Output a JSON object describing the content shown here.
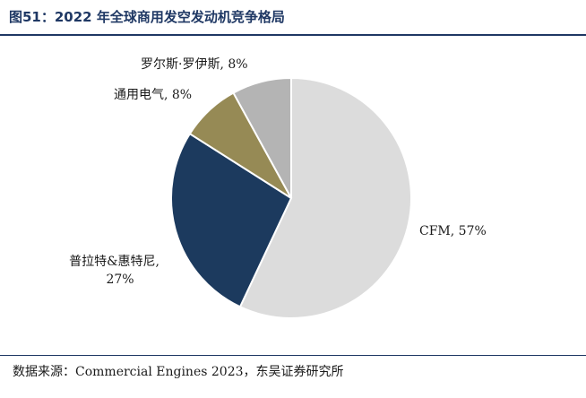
{
  "figure": {
    "title": "图51：2022 年全球商用发空发动机竞争格局"
  },
  "chart_data": {
    "type": "pie",
    "title": "",
    "unit": "%",
    "slices": [
      {
        "label": "CFM",
        "value": 57,
        "text": "CFM, 57%",
        "color": "#dcdcdc"
      },
      {
        "label": "普拉特&惠特尼",
        "value": 27,
        "text": "普拉特&惠特尼,",
        "text2": "27%",
        "color": "#1c3a5e"
      },
      {
        "label": "通用电气",
        "value": 8,
        "text": "通用电气, 8%",
        "color": "#968a55"
      },
      {
        "label": "罗尔斯·罗伊斯",
        "value": 8,
        "text": "罗尔斯·罗伊斯, 8%",
        "color": "#b4b4b4"
      }
    ],
    "legend": "none"
  },
  "footer": {
    "source": "数据来源：Commercial Engines 2023，东吴证券研究所"
  }
}
